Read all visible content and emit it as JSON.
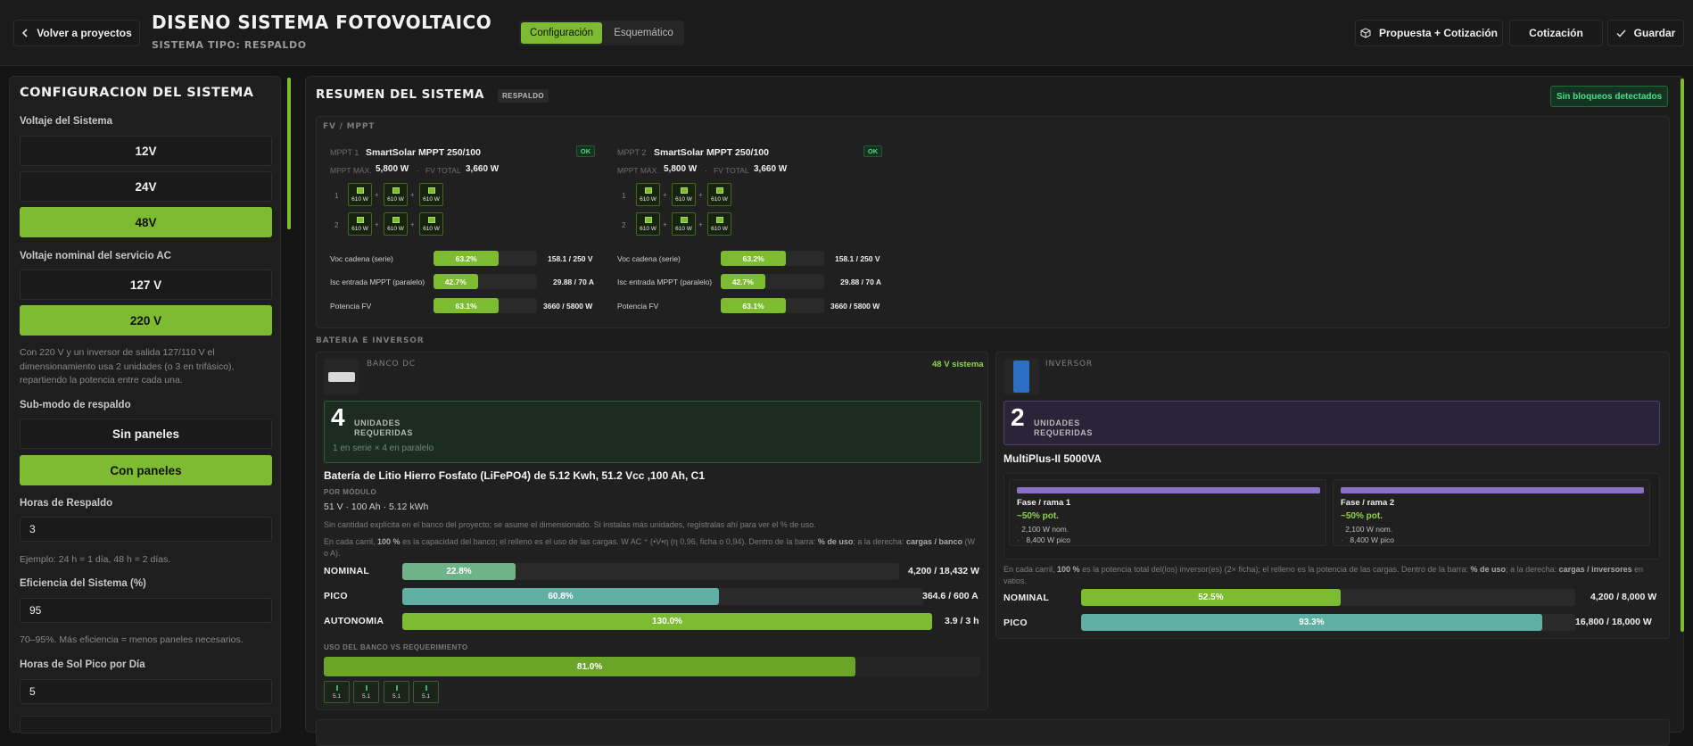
{
  "header": {
    "back_label": "Volver a proyectos",
    "title": "DISENO SISTEMA FOTOVOLTAICO",
    "subtitle": "SISTEMA TIPO: RESPALDO",
    "tabs": [
      {
        "label": "Configuración",
        "active": true
      },
      {
        "label": "Esquemático",
        "active": false
      }
    ],
    "actions": {
      "propuesta": "Propuesta + Cotización",
      "cotizacion": "Cotización",
      "guardar": "Guardar"
    }
  },
  "config": {
    "title": "CONFIGURACION DEL SISTEMA",
    "voltaje_label": "Voltaje del Sistema",
    "voltajes": [
      {
        "label": "12V",
        "selected": false
      },
      {
        "label": "24V",
        "selected": false
      },
      {
        "label": "48V",
        "selected": true
      }
    ],
    "ac_label": "Voltaje nominal del servicio AC",
    "ac_options": [
      {
        "label": "127 V",
        "selected": false
      },
      {
        "label": "220 V",
        "selected": true
      }
    ],
    "ac_hint": "Con 220 V y un inversor de salida 127/110 V el dimensionamiento usa 2 unidades (o 3 en trifásico), repartiendo la potencia entre cada una.",
    "submodo_label": "Sub-modo de respaldo",
    "submodos": [
      {
        "label": "Sin paneles",
        "selected": false
      },
      {
        "label": "Con paneles",
        "selected": true
      }
    ],
    "horas_label": "Horas de Respaldo",
    "horas_value": "3",
    "horas_hint": "Ejemplo: 24 h = 1 día, 48 h = 2 días.",
    "eficiencia_label": "Eficiencia del Sistema (%)",
    "eficiencia_value": "95",
    "eficiencia_hint": "70–95%. Más eficiencia = menos paneles necesarios.",
    "sol_label": "Horas de Sol Pico por Día",
    "sol_value": "5"
  },
  "resumen": {
    "title": "RESUMEN DEL SISTEMA",
    "tag": "RESPALDO",
    "status": "Sin bloqueos detectados",
    "fv_section": "FV / MPPT",
    "mppts": [
      {
        "id": "MPPT 1",
        "name": "SmartSolar MPPT 250/100",
        "status": "OK",
        "max_label": "MPPT MÁX.",
        "max": "5,800 W",
        "total_label": "FV TOTAL",
        "total": "3,660 W",
        "strings": [
          {
            "n": "1",
            "panels": [
              "610 W",
              "610 W",
              "610 W"
            ]
          },
          {
            "n": "2",
            "panels": [
              "610 W",
              "610 W",
              "610 W"
            ]
          }
        ],
        "metrics": [
          {
            "label": "Voc cadena (serie)",
            "pct": 63.2,
            "pct_label": "63.2%",
            "value": "158.1 / 250 V"
          },
          {
            "label": "Isc entrada MPPT (paralelo)",
            "pct": 42.7,
            "pct_label": "42.7%",
            "value": "29.88 / 70 A"
          },
          {
            "label": "Potencia FV",
            "pct": 63.1,
            "pct_label": "63.1%",
            "value": "3660 / 5800 W"
          }
        ]
      },
      {
        "id": "MPPT 2",
        "name": "SmartSolar MPPT 250/100",
        "status": "OK",
        "max_label": "MPPT MÁX.",
        "max": "5,800 W",
        "total_label": "FV TOTAL",
        "total": "3,660 W",
        "strings": [
          {
            "n": "1",
            "panels": [
              "610 W",
              "610 W",
              "610 W"
            ]
          },
          {
            "n": "2",
            "panels": [
              "610 W",
              "610 W",
              "610 W"
            ]
          }
        ],
        "metrics": [
          {
            "label": "Voc cadena (serie)",
            "pct": 63.2,
            "pct_label": "63.2%",
            "value": "158.1 / 250 V"
          },
          {
            "label": "Isc entrada MPPT (paralelo)",
            "pct": 42.7,
            "pct_label": "42.7%",
            "value": "29.88 / 70 A"
          },
          {
            "label": "Potencia FV",
            "pct": 63.1,
            "pct_label": "63.1%",
            "value": "3660 / 5800 W"
          }
        ]
      }
    ],
    "bat_inv_section": "BATERIA E INVERSOR",
    "banco": {
      "label": "BANCO DC",
      "voltage_tag": "48 V sistema",
      "units": "4",
      "units_label": [
        "UNIDADES",
        "REQUERIDAS"
      ],
      "config": "1 en serie × 4 en paralelo",
      "name": "Batería de Litio Hierro Fosfato (LiFePO4) de 5.12 Kwh, 51.2 Vcc ,100 Ah, C1",
      "per_module_label": "POR MÓDULO",
      "per_module": "51 V · 100 Ah · 5.12 kWh",
      "note1": "Sin cantidad explícita en el banco del proyecto; se asume el dimensionado. Si instalas más unidades, regístralas ahí para ver el % de uso.",
      "note2_a": "En cada carril, ",
      "note2_b": "100 %",
      "note2_c": " es la capacidad del banco; el relleno es el uso de las cargas. W AC ⁺ (•V•η (η 0.96, ficha o 0,94). Dentro de la barra: ",
      "note2_d": "% de uso",
      "note2_e": "; a la derecha: ",
      "note2_f": "cargas / banco",
      "note2_g": " (W o A).",
      "metrics": [
        {
          "label": "NOMINAL",
          "pct": 22.8,
          "pct_label": "22.8%",
          "value": "4,200 / 18,432 W",
          "color": "#6fb38a"
        },
        {
          "label": "PICO",
          "pct": 60.8,
          "pct_label": "60.8%",
          "value": "364.6 / 600 A",
          "color": "#5fb0a3"
        },
        {
          "label": "AUTONOMIA",
          "pct": 130.0,
          "pct_label": "130.0%",
          "value": "3.9 / 3 h",
          "color": "#7dbb31"
        }
      ],
      "uso_label": "USO DEL BANCO VS REQUERIMIENTO",
      "uso_pct": 81.0,
      "uso_pct_label": "81.0%",
      "modules": [
        "5.1",
        "5.1",
        "5.1",
        "5.1"
      ]
    },
    "inversor": {
      "label": "INVERSOR",
      "units": "2",
      "units_label": [
        "UNIDADES",
        "REQUERIDAS"
      ],
      "name": "MultiPlus-II 5000VA",
      "fases": [
        {
          "title": "Fase / rama 1",
          "pot": "~50% pot.",
          "nom": "2,100 W nom.",
          "pico": "8,400 W pico"
        },
        {
          "title": "Fase / rama 2",
          "pot": "~50% pot.",
          "nom": "2,100 W nom.",
          "pico": "8,400 W pico"
        }
      ],
      "note_a": "En cada carril, ",
      "note_b": "100 %",
      "note_c": " es la potencia total del(los) inversor(es) (2× ficha); el relleno es la potencia de las cargas. Dentro de la barra: ",
      "note_d": "% de uso",
      "note_e": "; a la derecha: ",
      "note_f": "cargas / inversores",
      "note_g": " en vatios.",
      "metrics": [
        {
          "label": "NOMINAL",
          "pct": 52.5,
          "pct_label": "52.5%",
          "value": "4,200 / 8,000 W",
          "color": "#7dbb31"
        },
        {
          "label": "PICO",
          "pct": 93.3,
          "pct_label": "93.3%",
          "value": "16,800 / 18,000 W",
          "color": "#5fb0a3"
        }
      ]
    }
  }
}
